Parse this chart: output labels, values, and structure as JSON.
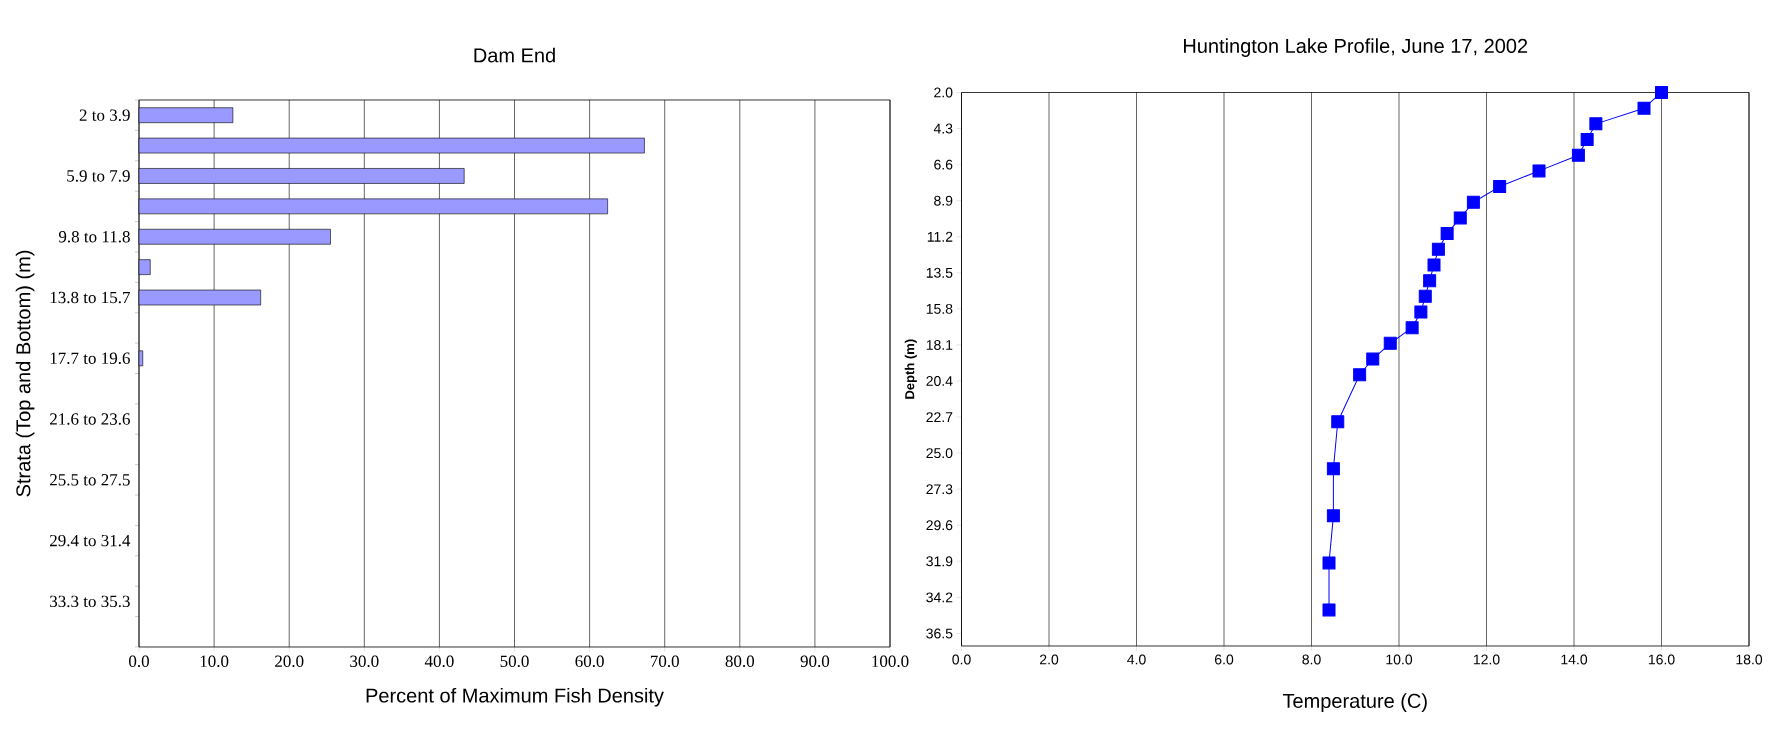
{
  "chart_data": [
    {
      "type": "bar",
      "orientation": "horizontal",
      "title": "Dam End",
      "xlabel": "Percent of Maximum Fish Density",
      "ylabel": "Strata (Top and Bottom) (m)",
      "categories": [
        "2 to 3.9",
        null,
        "5.9 to 7.9",
        null,
        "9.8 to 11.8",
        null,
        "13.8 to 15.7",
        null,
        "17.7 to 19.6",
        null,
        "21.6 to 23.6",
        null,
        "25.5 to 27.5",
        null,
        "29.4 to 31.4",
        null,
        "33.3 to 35.3",
        null
      ],
      "values": [
        12.5,
        67.3,
        43.3,
        62.4,
        25.5,
        1.5,
        16.2,
        0,
        0.5,
        0,
        0,
        0,
        0,
        0,
        0,
        0,
        0,
        0
      ],
      "color": "#9999ff",
      "xlim": [
        0,
        100
      ],
      "xticks": [
        {
          "value": 0,
          "label": "0.0"
        },
        {
          "value": 10,
          "label": "10.0"
        },
        {
          "value": 20,
          "label": "20.0"
        },
        {
          "value": 30,
          "label": "30.0"
        },
        {
          "value": 40,
          "label": "40.0"
        },
        {
          "value": 50,
          "label": "50.0"
        },
        {
          "value": 60,
          "label": "60.0"
        },
        {
          "value": 70,
          "label": "70.0"
        },
        {
          "value": 80,
          "label": "80.0"
        },
        {
          "value": 90,
          "label": "90.0"
        },
        {
          "value": 100,
          "label": "100.0"
        }
      ],
      "grid": "x"
    },
    {
      "type": "line",
      "title": "Huntington Lake Profile, June 17, 2002",
      "xlabel": "Temperature (C)",
      "ylabel": "Depth (m)",
      "x": [
        16.0,
        15.6,
        14.5,
        14.3,
        14.1,
        13.2,
        12.3,
        11.7,
        11.4,
        11.1,
        10.9,
        10.8,
        10.7,
        10.6,
        10.5,
        10.3,
        9.8,
        9.4,
        9.1,
        8.6,
        8.5,
        8.5,
        8.4,
        8.4
      ],
      "series": [
        {
          "color": "#0000ff",
          "values": [
            2,
            3,
            4,
            5,
            6,
            7,
            8,
            9,
            10,
            11,
            12,
            13,
            14,
            15,
            16,
            17,
            18,
            19,
            20,
            23,
            26,
            29,
            32,
            35
          ]
        }
      ],
      "marker": "square",
      "xlim": [
        0,
        18
      ],
      "ylim": [
        37.3,
        2
      ],
      "xticks": [
        {
          "value": 0,
          "label": "0.0"
        },
        {
          "value": 2,
          "label": "2.0"
        },
        {
          "value": 4,
          "label": "4.0"
        },
        {
          "value": 6,
          "label": "6.0"
        },
        {
          "value": 8,
          "label": "8.0"
        },
        {
          "value": 10,
          "label": "10.0"
        },
        {
          "value": 12,
          "label": "12.0"
        },
        {
          "value": 14,
          "label": "14.0"
        },
        {
          "value": 16,
          "label": "16.0"
        },
        {
          "value": 18,
          "label": "18.0"
        }
      ],
      "yticks": [
        {
          "value": 2,
          "label": "2.0"
        },
        {
          "value": 4.3,
          "label": "4.3"
        },
        {
          "value": 6.6,
          "label": "6.6"
        },
        {
          "value": 8.9,
          "label": "8.9"
        },
        {
          "value": 11.2,
          "label": "11.2"
        },
        {
          "value": 13.5,
          "label": "13.5"
        },
        {
          "value": 15.8,
          "label": "15.8"
        },
        {
          "value": 18.1,
          "label": "18.1"
        },
        {
          "value": 20.4,
          "label": "20.4"
        },
        {
          "value": 22.7,
          "label": "22.7"
        },
        {
          "value": 25,
          "label": "25.0"
        },
        {
          "value": 27.3,
          "label": "27.3"
        },
        {
          "value": 29.6,
          "label": "29.6"
        },
        {
          "value": 31.9,
          "label": "31.9"
        },
        {
          "value": 34.2,
          "label": "34.2"
        },
        {
          "value": 36.5,
          "label": "36.5"
        }
      ],
      "grid": "x"
    }
  ]
}
